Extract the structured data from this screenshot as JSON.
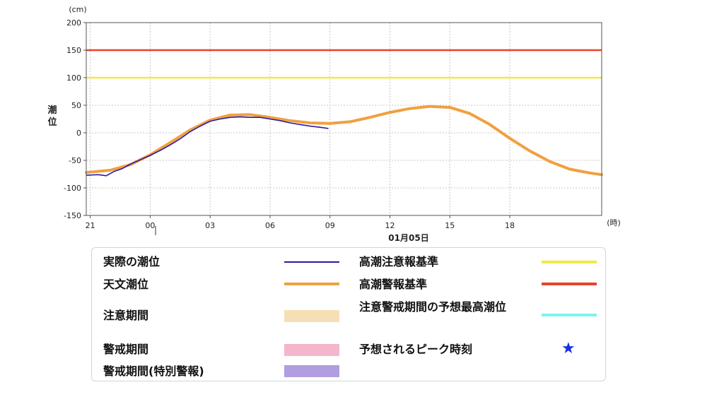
{
  "chart_data": {
    "type": "line",
    "unit_label": "(cm)",
    "ylabel": "潮位",
    "x_unit_label": "(時)",
    "date_label": "01月05日",
    "ylim": [
      -150,
      200
    ],
    "xlim": [
      -3.2,
      22.6
    ],
    "y_ticks": [
      200,
      150,
      100,
      50,
      0,
      -50,
      -100,
      -150
    ],
    "x_ticks": [
      {
        "hour": -3,
        "label": "21"
      },
      {
        "hour": 0,
        "label": "00"
      },
      {
        "hour": 3,
        "label": "03"
      },
      {
        "hour": 6,
        "label": "06"
      },
      {
        "hour": 9,
        "label": "09"
      },
      {
        "hour": 12,
        "label": "12"
      },
      {
        "hour": 15,
        "label": "15"
      },
      {
        "hour": 18,
        "label": "18"
      }
    ],
    "grid": true,
    "thresholds": [
      {
        "name": "高潮警報基準",
        "value": 150,
        "color": "#e8432a"
      },
      {
        "name": "高潮注意報基準",
        "value": 100,
        "color": "#f2e84a"
      }
    ],
    "series": [
      {
        "name": "天文潮位",
        "color": "#f0a040",
        "x": [
          -3.2,
          -2,
          -1,
          0,
          1,
          2,
          3,
          4,
          5,
          6,
          7,
          8,
          9,
          10,
          11,
          12,
          13,
          14,
          15,
          16,
          17,
          18,
          19,
          20,
          21,
          22,
          22.6
        ],
        "y": [
          -72,
          -68,
          -58,
          -40,
          -18,
          5,
          23,
          32,
          33,
          28,
          22,
          18,
          17,
          20,
          28,
          37,
          44,
          48,
          46,
          35,
          15,
          -10,
          -33,
          -52,
          -66,
          -73,
          -76
        ]
      },
      {
        "name": "実際の潮位",
        "color": "#2a1aa8",
        "x": [
          -3.2,
          -2.6,
          -2.2,
          -1.8,
          -1.4,
          -1,
          -0.5,
          0,
          0.5,
          1,
          1.5,
          2,
          2.5,
          3,
          3.5,
          4,
          4.5,
          5,
          5.5,
          6,
          6.5,
          7,
          7.5,
          8,
          8.5,
          8.9
        ],
        "y": [
          -77,
          -76,
          -78,
          -70,
          -65,
          -57,
          -49,
          -41,
          -32,
          -22,
          -11,
          2,
          12,
          21,
          25,
          28,
          29,
          28,
          28,
          25,
          22,
          18,
          15,
          12,
          10,
          8
        ]
      }
    ]
  },
  "legend": {
    "actual_label": "実際の潮位",
    "actual_color": "#2a1aa8",
    "astro_label": "天文潮位",
    "astro_color": "#f0a040",
    "caution_period_label": "注意期間",
    "caution_period_color": "#f7dfb5",
    "warning_period_label": "警戒期間",
    "warning_period_color": "#f4b6cc",
    "special_period_label": "警戒期間(特別警報)",
    "special_period_color": "#b09ee0",
    "advisory_label": "高潮注意報基準",
    "advisory_color": "#f2e84a",
    "warning_label": "高潮警報基準",
    "warning_color": "#e8432a",
    "peak_forecast_label": "注意警戒期間の予想最高潮位",
    "peak_forecast_color": "#7ef2f4",
    "peak_time_label": "予想されるピーク時刻",
    "peak_time_color": "#1a2ee0",
    "peak_time_icon": "star-icon",
    "star_glyph": "★"
  }
}
